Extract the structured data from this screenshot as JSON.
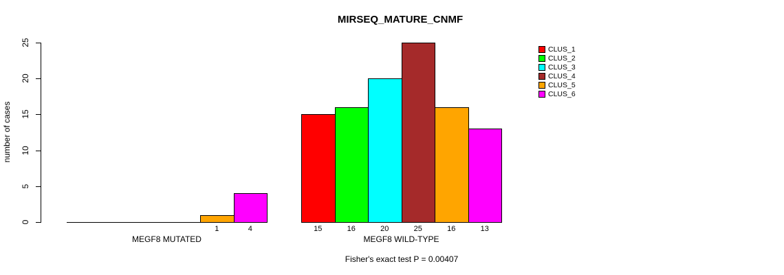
{
  "title": "MIRSEQ_MATURE_CNMF",
  "chart_data": {
    "type": "bar",
    "title": "MIRSEQ_MATURE_CNMF",
    "xlabel": "",
    "ylabel": "number of cases",
    "ylim": [
      0,
      25
    ],
    "yticks": [
      "0",
      "5",
      "10",
      "15",
      "20",
      "25"
    ],
    "grid": false,
    "legend_position": "right",
    "legend": [
      {
        "label": "CLUS_1",
        "color": "#ff0000"
      },
      {
        "label": "CLUS_2",
        "color": "#00ff00"
      },
      {
        "label": "CLUS_3",
        "color": "#00ffff"
      },
      {
        "label": "CLUS_4",
        "color": "#a52a2a"
      },
      {
        "label": "CLUS_5",
        "color": "#ffa500"
      },
      {
        "label": "CLUS_6",
        "color": "#ff00ff"
      }
    ],
    "series_colors": [
      "#ff0000",
      "#00ff00",
      "#00ffff",
      "#a52a2a",
      "#ffa500",
      "#ff00ff"
    ],
    "groups": [
      {
        "label": "MEGF8 MUTATED",
        "values": [
          0,
          0,
          0,
          0,
          1,
          4
        ],
        "bar_labels": [
          "",
          "",
          "",
          "",
          "1",
          "4"
        ]
      },
      {
        "label": "MEGF8 WILD-TYPE",
        "values": [
          15,
          16,
          20,
          25,
          16,
          13
        ],
        "bar_labels": [
          "15",
          "16",
          "20",
          "25",
          "16",
          "13"
        ]
      }
    ],
    "annotation": "Fisher's exact test P = 0.00407"
  }
}
